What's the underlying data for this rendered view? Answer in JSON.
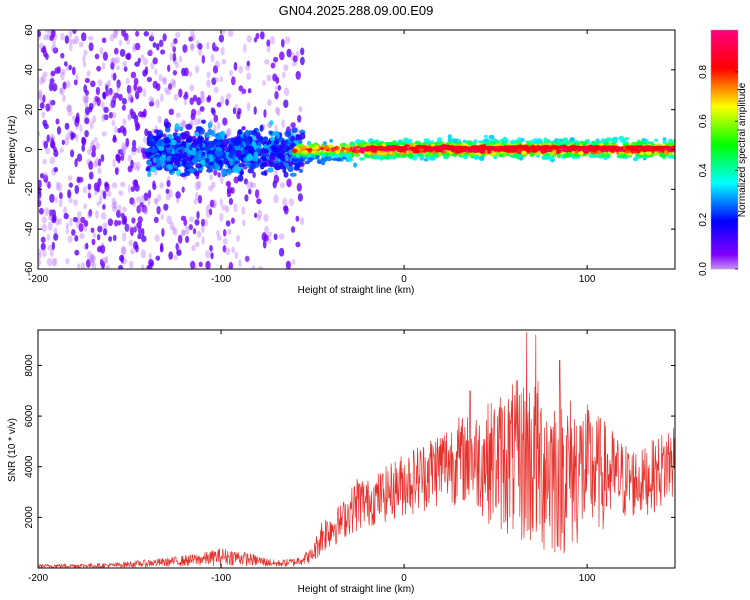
{
  "figure_title": "GN04.2025.288.09.00.E09",
  "colors": {
    "snr_line": "#e8302a",
    "spectrogram_low": "#8000ff",
    "spectrogram_high": "#ff0080"
  },
  "chart_data": [
    {
      "type": "heatmap",
      "title": "GN04.2025.288.09.00.E09",
      "xlabel": "Height of straight line (km)",
      "ylabel": "Frequency (Hz)",
      "xlim": [
        -200,
        148
      ],
      "ylim": [
        -60,
        60
      ],
      "x_ticks": [
        "-200",
        "-100",
        "0",
        "100"
      ],
      "y_ticks": [
        "-60",
        "-40",
        "-20",
        "0",
        "20",
        "40",
        "60"
      ],
      "colorbar": {
        "label": "Normalized spectral amplitude",
        "range": [
          0.0,
          0.97
        ],
        "ticks": [
          "0.0",
          "0.2",
          "0.4",
          "0.6",
          "0.8"
        ],
        "colormap": "rainbow (purple-blue-cyan-green-yellow-red-pink)"
      },
      "features": [
        {
          "x_range": [
            -200,
            -55
          ],
          "description": "scattered low-amplitude noise across full frequency band",
          "amplitude": 0.05
        },
        {
          "x_range": [
            -140,
            -55
          ],
          "description": "broad band around 0 Hz, about ±10 Hz wide",
          "amplitude": 0.25
        },
        {
          "x_range": [
            -60,
            148
          ],
          "description": "narrow band centred near 0 Hz, about ±5 Hz wide",
          "amplitude_peak": 0.95
        }
      ]
    },
    {
      "type": "line",
      "xlabel": "Height of straight line (km)",
      "ylabel": "SNR (10 * v/v)",
      "xlim": [
        -200,
        148
      ],
      "ylim": [
        0,
        9400
      ],
      "x_ticks": [
        "-200",
        "-100",
        "0",
        "100"
      ],
      "y_ticks": [
        "2000",
        "4000",
        "6000",
        "8000"
      ],
      "envelope": {
        "x": [
          -200,
          -160,
          -130,
          -110,
          -100,
          -90,
          -80,
          -70,
          -60,
          -50,
          -45,
          -40,
          -35,
          -30,
          -25,
          -20,
          -10,
          0,
          10,
          20,
          30,
          40,
          50,
          60,
          70,
          80,
          90,
          100,
          110,
          120,
          130,
          140,
          148
        ],
        "low": [
          0,
          0,
          50,
          80,
          100,
          100,
          60,
          30,
          50,
          200,
          500,
          800,
          1000,
          1300,
          1400,
          1600,
          1800,
          2000,
          2200,
          2400,
          2500,
          2200,
          1500,
          1000,
          500,
          300,
          500,
          1000,
          1500,
          1800,
          2000,
          2300,
          2500
        ],
        "high": [
          150,
          200,
          400,
          600,
          800,
          700,
          500,
          300,
          400,
          800,
          2000,
          2300,
          2500,
          3000,
          3800,
          3500,
          4000,
          4600,
          5000,
          5600,
          6000,
          6200,
          6800,
          7400,
          7600,
          7300,
          6900,
          6500,
          5800,
          5000,
          4700,
          5300,
          6000
        ],
        "spikes": [
          {
            "x": 67,
            "y": 9300
          },
          {
            "x": 72,
            "y": 9200
          },
          {
            "x": 36,
            "y": 7000
          },
          {
            "x": 85,
            "y": 8200
          }
        ]
      }
    }
  ]
}
